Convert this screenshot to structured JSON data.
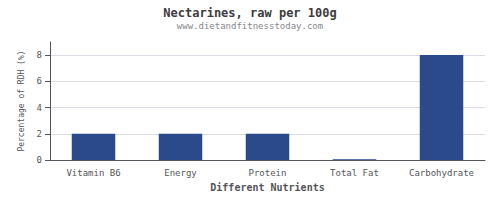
{
  "chart_data": {
    "type": "bar",
    "title": "Nectarines, raw per 100g",
    "subtitle": "www.dietandfitnesstoday.com",
    "categories": [
      "Vitamin B6",
      "Energy",
      "Protein",
      "Total Fat",
      "Carbohydrate"
    ],
    "values": [
      2.0,
      2.0,
      2.0,
      0.05,
      8.0
    ],
    "color": "#2b4a8c",
    "xlabel": "Different Nutrients",
    "ylabel": "Percentage of RDH (%)",
    "ylim": [
      0,
      9
    ],
    "yticks": [
      0,
      2,
      4,
      6,
      8
    ],
    "grid": true
  }
}
